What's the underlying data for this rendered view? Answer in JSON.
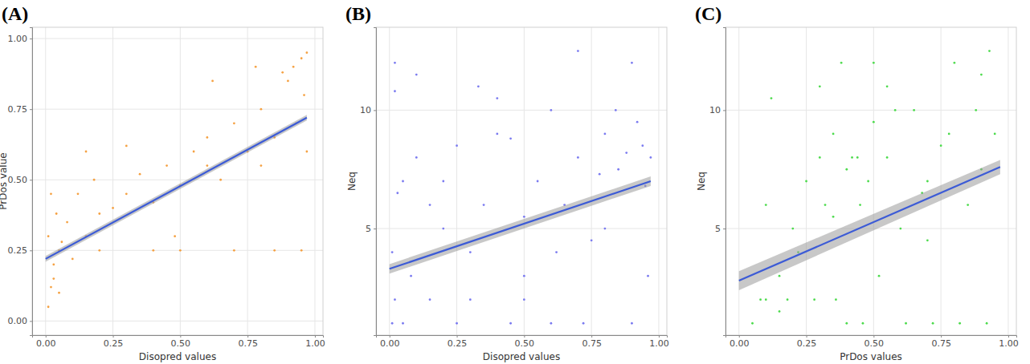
{
  "chart_data": [
    {
      "type": "scatter",
      "title": "(A)",
      "x_label": "Disopred values",
      "y_label": "PrDos value",
      "xlim": [
        -0.05,
        1.03
      ],
      "ylim": [
        -0.05,
        1.04
      ],
      "xticks": [
        {
          "value": 0,
          "label": "0.00"
        },
        {
          "value": 0.25,
          "label": "0.25"
        },
        {
          "value": 0.5,
          "label": "0.50"
        },
        {
          "value": 0.75,
          "label": "0.75"
        },
        {
          "value": 1,
          "label": "1.00"
        }
      ],
      "yticks": [
        {
          "value": 0,
          "label": "0.00"
        },
        {
          "value": 0.25,
          "label": "0.25"
        },
        {
          "value": 0.5,
          "label": "0.50"
        },
        {
          "value": 0.75,
          "label": "0.75"
        },
        {
          "value": 1,
          "label": "1.00"
        }
      ],
      "grid": true,
      "series": [
        {
          "type": "scatter",
          "color": "#f5a142",
          "marker": "circle",
          "x": [
            0.01,
            0.02,
            0.03,
            0.01,
            0.04,
            0.02,
            0.05,
            0.03,
            0.06,
            0.08,
            0.1,
            0.12,
            0.15,
            0.18,
            0.2,
            0.25,
            0.3,
            0.35,
            0.4,
            0.45,
            0.5,
            0.55,
            0.6,
            0.65,
            0.7,
            0.75,
            0.8,
            0.85,
            0.9,
            0.92,
            0.95,
            0.96,
            0.97,
            0.93,
            0.88,
            0.78,
            0.62,
            0.48,
            0.3,
            0.15,
            0.5,
            0.7,
            0.85,
            0.95,
            0.2,
            0.4,
            0.6,
            0.8,
            0.05,
            0.97
          ],
          "values": [
            0.05,
            0.12,
            0.2,
            0.3,
            0.38,
            0.45,
            0.25,
            0.15,
            0.28,
            0.35,
            0.22,
            0.45,
            0.3,
            0.5,
            0.38,
            0.4,
            0.45,
            0.52,
            0.42,
            0.55,
            0.48,
            0.6,
            0.65,
            0.5,
            0.7,
            0.6,
            0.75,
            0.65,
            0.85,
            0.9,
            0.93,
            0.8,
            0.95,
            0.7,
            0.88,
            0.9,
            0.85,
            0.3,
            0.62,
            0.6,
            0.25,
            0.25,
            0.25,
            0.25,
            0.25,
            0.25,
            0.55,
            0.55,
            0.1,
            0.6
          ]
        },
        {
          "type": "line",
          "color": "#3c5bd6",
          "x": [
            0,
            0.97
          ],
          "values": [
            0.22,
            0.72
          ],
          "lower": [
            0.21,
            0.71
          ],
          "upper": [
            0.23,
            0.73
          ]
        }
      ]
    },
    {
      "type": "scatter",
      "title": "(B)",
      "x_label": "Disopred values",
      "y_label": "Neq",
      "xlim": [
        -0.05,
        1.03
      ],
      "ylim": [
        0.5,
        13.5
      ],
      "xticks": [
        {
          "value": 0,
          "label": "0.00"
        },
        {
          "value": 0.25,
          "label": "0.25"
        },
        {
          "value": 0.5,
          "label": "0.50"
        },
        {
          "value": 0.75,
          "label": "0.75"
        },
        {
          "value": 1,
          "label": "1.00"
        }
      ],
      "yticks": [
        5,
        10
      ],
      "grid": true,
      "series": [
        {
          "type": "scatter",
          "color": "#7b7bf0",
          "marker": "circle",
          "x": [
            0.01,
            0.02,
            0.01,
            0.03,
            0.02,
            0.05,
            0.08,
            0.1,
            0.15,
            0.2,
            0.25,
            0.3,
            0.35,
            0.4,
            0.45,
            0.5,
            0.55,
            0.6,
            0.65,
            0.7,
            0.75,
            0.8,
            0.85,
            0.9,
            0.95,
            0.97,
            0.1,
            0.3,
            0.5,
            0.7,
            0.9,
            0.2,
            0.4,
            0.6,
            0.8,
            0.96,
            0.02,
            0.92,
            0.88,
            0.78,
            0.5,
            0.45,
            0.62,
            0.33,
            0.15,
            0.72,
            0.84,
            0.94,
            0.05,
            0.25
          ],
          "values": [
            1,
            2,
            4,
            6.5,
            10.8,
            1,
            3,
            8,
            2,
            5,
            8.5,
            4,
            6,
            9,
            1,
            5.5,
            7,
            10,
            6,
            8,
            4.5,
            9,
            7.5,
            12,
            6.8,
            8,
            11.5,
            2,
            3,
            12.5,
            1,
            7,
            10.5,
            1,
            5,
            3,
            12,
            9.5,
            8.2,
            7.3,
            2,
            8.8,
            4,
            11,
            6,
            1,
            10,
            8.5,
            7,
            1
          ]
        },
        {
          "type": "line",
          "color": "#3c5bd6",
          "x": [
            0,
            0.97
          ],
          "values": [
            3.3,
            7.0
          ],
          "lower": [
            3.1,
            6.8
          ],
          "upper": [
            3.5,
            7.2
          ]
        }
      ]
    },
    {
      "type": "scatter",
      "title": "(C)",
      "x_label": "PrDos values",
      "y_label": "Neq",
      "xlim": [
        -0.05,
        1.03
      ],
      "ylim": [
        0.5,
        13.5
      ],
      "xticks": [
        {
          "value": 0,
          "label": "0.00"
        },
        {
          "value": 0.25,
          "label": "0.25"
        },
        {
          "value": 0.5,
          "label": "0.50"
        },
        {
          "value": 0.75,
          "label": "0.75"
        },
        {
          "value": 1,
          "label": "1.00"
        }
      ],
      "yticks": [
        5,
        10
      ],
      "grid": true,
      "series": [
        {
          "type": "scatter",
          "color": "#4ddb4d",
          "marker": "circle",
          "x": [
            0.05,
            0.1,
            0.15,
            0.2,
            0.25,
            0.3,
            0.35,
            0.4,
            0.42,
            0.45,
            0.5,
            0.55,
            0.6,
            0.65,
            0.7,
            0.75,
            0.8,
            0.85,
            0.9,
            0.95,
            0.12,
            0.22,
            0.32,
            0.38,
            0.44,
            0.48,
            0.52,
            0.58,
            0.68,
            0.78,
            0.88,
            0.93,
            0.08,
            0.18,
            0.28,
            0.36,
            0.4,
            0.46,
            0.62,
            0.72,
            0.82,
            0.92,
            0.1,
            0.3,
            0.5,
            0.7,
            0.9,
            0.15,
            0.35,
            0.55
          ],
          "values": [
            1,
            2,
            3,
            5,
            7,
            8,
            9,
            7.5,
            8,
            6,
            9.5,
            11,
            5,
            10,
            7,
            8.5,
            12,
            6,
            11.5,
            9,
            10.5,
            4,
            6,
            12,
            8,
            7,
            3,
            10,
            6.5,
            9,
            10,
            12.5,
            2,
            2,
            2,
            2,
            1,
            1,
            1,
            1,
            1,
            1,
            6,
            11,
            12,
            4.5,
            7.5,
            1.5,
            5.5,
            8
          ]
        },
        {
          "type": "line",
          "color": "#3c5bd6",
          "x": [
            0,
            0.97
          ],
          "values": [
            2.8,
            7.6
          ],
          "lower": [
            2.4,
            7.3
          ],
          "upper": [
            3.2,
            7.9
          ]
        }
      ]
    }
  ]
}
